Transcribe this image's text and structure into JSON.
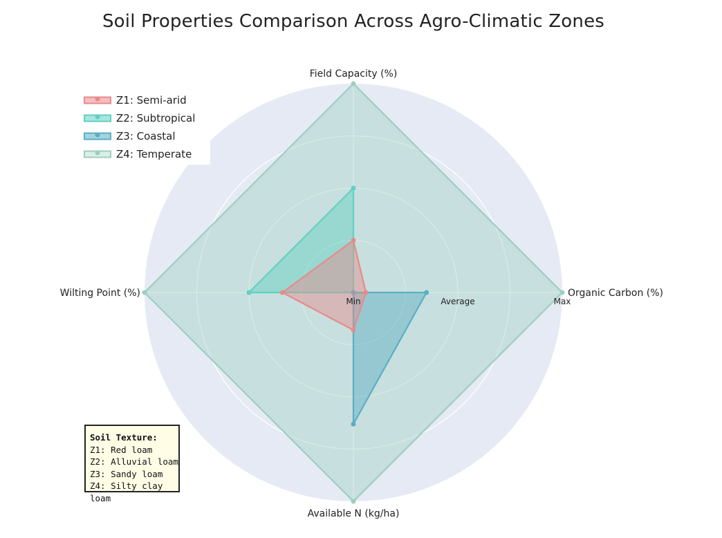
{
  "chart_data": {
    "type": "radar",
    "title": "Soil Properties Comparison Across Agro-Climatic Zones",
    "axes": [
      "Field Capacity (%)",
      "Organic Carbon (%)",
      "Available N (kg/ha)",
      "Wilting Point (%)"
    ],
    "radial_ticks": [
      "Min",
      "Average",
      "Max"
    ],
    "radial_range": [
      0,
      1
    ],
    "grid": true,
    "legend_position": "top-left",
    "series": [
      {
        "name": "Z1: Semi-arid",
        "color": "#e88a8a",
        "values": [
          0.25,
          0.06,
          0.18,
          0.34
        ]
      },
      {
        "name": "Z2: Subtropical",
        "color": "#5fd1c2",
        "values": [
          0.5,
          0.0,
          0.0,
          0.5
        ]
      },
      {
        "name": "Z3: Coastal",
        "color": "#5aaec4",
        "values": [
          0.0,
          0.35,
          0.63,
          0.0
        ]
      },
      {
        "name": "Z4: Temperate",
        "color": "#9ccfbf",
        "values": [
          1.0,
          1.0,
          1.0,
          1.0
        ]
      }
    ]
  },
  "annotation": {
    "title": "Soil Texture:",
    "lines": [
      "Z1: Red loam",
      "Z2: Alluvial loam",
      "Z3: Sandy loam",
      "Z4: Silty clay loam"
    ]
  }
}
